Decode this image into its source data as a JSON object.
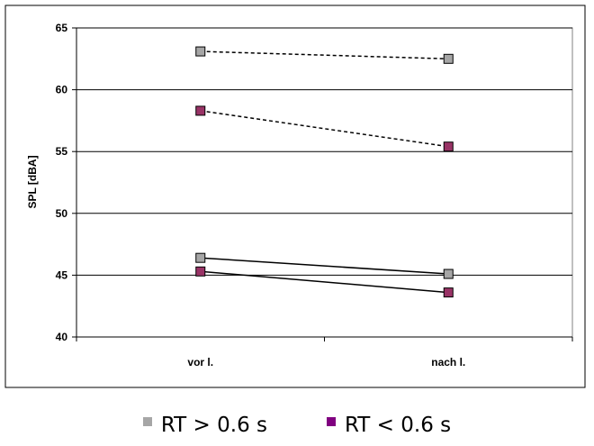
{
  "chart_data": {
    "type": "line",
    "title": "",
    "xlabel": "",
    "ylabel": "SPL [dBA]",
    "categories": [
      "vor l.",
      "nach l."
    ],
    "ylim": [
      40,
      65
    ],
    "yticks": [
      40,
      45,
      50,
      55,
      60,
      65
    ],
    "grid": true,
    "legend_position": "bottom",
    "series": [
      {
        "legend_group": 0,
        "color": "#a6a6a6",
        "line_style": "dashed",
        "values": [
          63.1,
          62.5
        ]
      },
      {
        "legend_group": 1,
        "color": "#993366",
        "line_style": "dashed",
        "values": [
          58.3,
          55.4
        ]
      },
      {
        "legend_group": 0,
        "color": "#a6a6a6",
        "line_style": "solid",
        "values": [
          46.4,
          45.1
        ]
      },
      {
        "legend_group": 1,
        "color": "#993366",
        "line_style": "solid",
        "values": [
          45.3,
          43.6
        ]
      }
    ],
    "legend": [
      {
        "label": "RT > 0.6 s",
        "color": "#a6a6a6"
      },
      {
        "label": "RT < 0.6 s",
        "color": "#800080"
      }
    ]
  }
}
